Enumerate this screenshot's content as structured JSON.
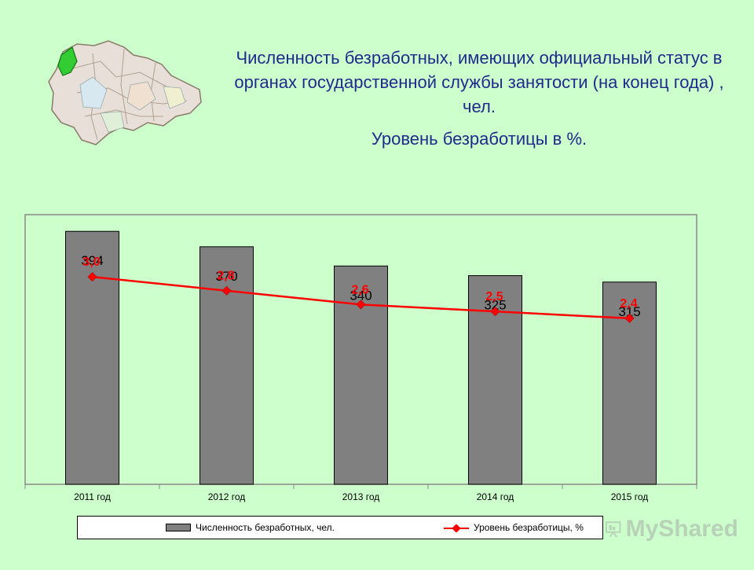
{
  "header": {
    "title_line1": "Численность безработных, имеющих официальный статус в органах государственной службы занятости (на конец года) , чел.",
    "title_line2": "Уровень безработицы в %."
  },
  "colors": {
    "background": "#ccffcc",
    "title": "#1f2a8c",
    "bar_fill": "#808080",
    "line": "#ff0000",
    "line_label": "#ff0000",
    "map_highlight": "#33cc33"
  },
  "watermark": {
    "text": "MyShared"
  },
  "chart_data": {
    "type": "bar",
    "categories": [
      "2011 год",
      "2012 год",
      "2013 год",
      "2014 год",
      "2015 год"
    ],
    "ylim": [
      0,
      420
    ],
    "y2lim": [
      0,
      3.9
    ],
    "grid": false,
    "legend_position": "bottom",
    "series": [
      {
        "name": "Численность безработных, чел.",
        "type": "bar",
        "values": [
          394,
          370,
          340,
          325,
          315
        ],
        "labels": [
          "394",
          "370",
          "340",
          "325",
          "315"
        ]
      },
      {
        "name": "Уровень безработицы, %",
        "type": "line",
        "axis": "secondary",
        "values": [
          3.0,
          2.8,
          2.6,
          2.5,
          2.4
        ],
        "labels": [
          "3,0",
          "2,8",
          "2,6",
          "2,5",
          "2,4"
        ]
      }
    ]
  }
}
